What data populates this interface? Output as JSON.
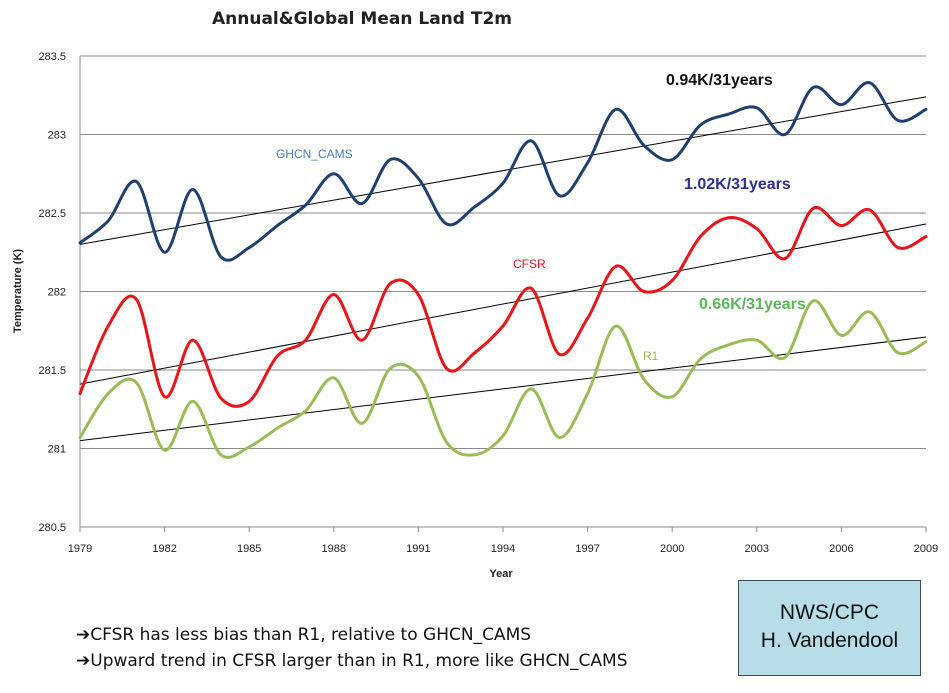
{
  "chart_data": {
    "type": "line",
    "title": "Annual&Global Mean Land T2m",
    "xlabel": "Year",
    "ylabel": "Temperature (K)",
    "xlim": [
      1979,
      2009
    ],
    "ylim": [
      280.5,
      283.5
    ],
    "xticks": [
      1979,
      1982,
      1985,
      1988,
      1991,
      1994,
      1997,
      2000,
      2003,
      2006,
      2009
    ],
    "yticks": [
      "280.5",
      "281",
      "281.5",
      "282",
      "282.5",
      "283",
      "283.5"
    ],
    "grid": "horizontal",
    "x": [
      1979,
      1980,
      1981,
      1982,
      1983,
      1984,
      1985,
      1986,
      1987,
      1988,
      1989,
      1990,
      1991,
      1992,
      1993,
      1994,
      1995,
      1996,
      1997,
      1998,
      1999,
      2000,
      2001,
      2002,
      2003,
      2004,
      2005,
      2006,
      2007,
      2008,
      2009
    ],
    "series": [
      {
        "name": "GHCN_CAMS",
        "color": "#1f3f6e",
        "label_color": "#4a7ab8",
        "values": [
          282.31,
          282.45,
          282.7,
          282.25,
          282.65,
          282.22,
          282.28,
          282.42,
          282.55,
          282.75,
          282.56,
          282.84,
          282.72,
          282.43,
          282.54,
          282.69,
          282.96,
          282.61,
          282.82,
          283.16,
          282.93,
          282.84,
          283.06,
          283.13,
          283.17,
          283.0,
          283.3,
          283.19,
          283.33,
          283.09,
          283.16
        ],
        "trend": [
          282.3,
          283.24
        ]
      },
      {
        "name": "CFSR",
        "color": "#e8141a",
        "label_color": "#e8141a",
        "values": [
          281.35,
          281.78,
          281.95,
          281.33,
          281.69,
          281.32,
          281.3,
          281.59,
          281.69,
          281.98,
          281.69,
          282.05,
          281.98,
          281.51,
          281.61,
          281.78,
          282.02,
          281.6,
          281.83,
          282.16,
          282.0,
          282.07,
          282.35,
          282.47,
          282.4,
          282.21,
          282.53,
          282.42,
          282.52,
          282.28,
          282.35
        ],
        "trend": [
          281.41,
          282.43
        ]
      },
      {
        "name": "R1",
        "color": "#9bbb59",
        "label_color": "#9bbb59",
        "values": [
          281.07,
          281.35,
          281.42,
          280.99,
          281.3,
          280.96,
          281.01,
          281.13,
          281.24,
          281.45,
          281.16,
          281.51,
          281.46,
          281.04,
          280.96,
          281.08,
          281.38,
          281.07,
          281.35,
          281.78,
          281.44,
          281.33,
          281.57,
          281.66,
          281.69,
          281.58,
          281.94,
          281.72,
          281.87,
          281.61,
          281.68
        ],
        "trend": [
          281.05,
          281.71
        ]
      }
    ],
    "trend_labels": [
      {
        "text": "0.94K/31years",
        "color": "#111111"
      },
      {
        "text": "1.02K/31years",
        "color": "#2e3192"
      },
      {
        "text": "0.66K/31years",
        "color": "#5cb85c"
      }
    ]
  },
  "notes": {
    "arrow": "➔",
    "bullet1": "CFSR has less bias than R1, relative to GHCN_CAMS",
    "bullet2": "Upward trend in CFSR larger than in R1, more like GHCN_CAMS"
  },
  "credit": {
    "line1": "NWS/CPC",
    "line2": "H. Vandendool"
  }
}
